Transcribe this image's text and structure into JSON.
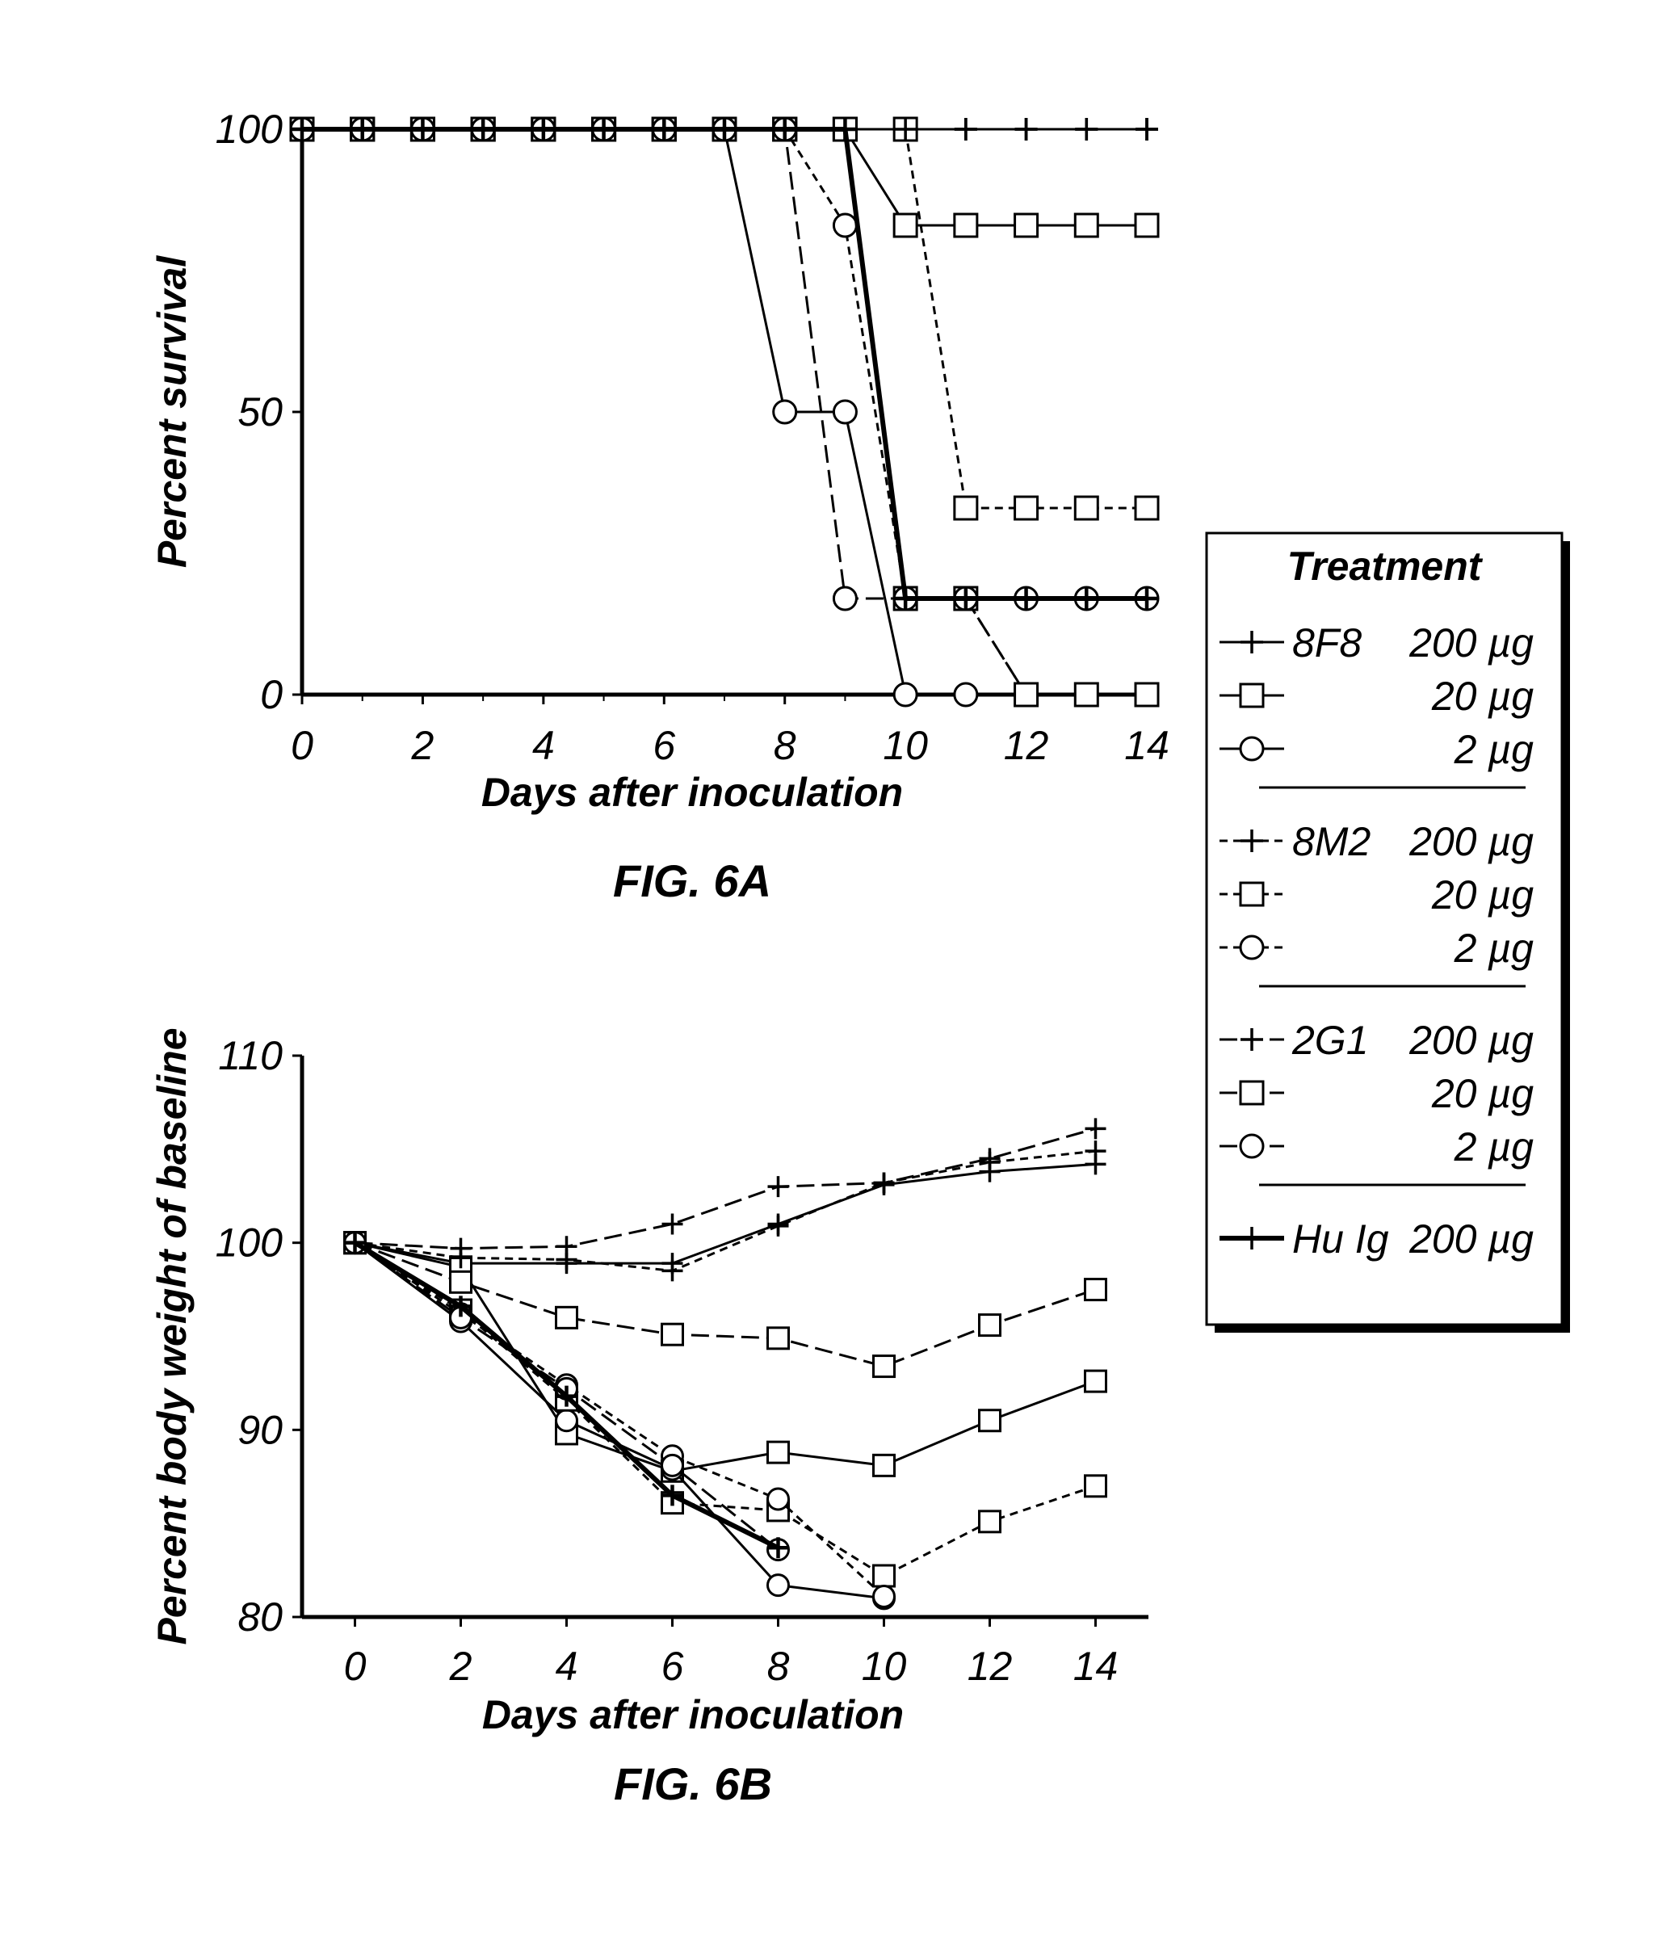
{
  "chart_data": [
    {
      "type": "line",
      "figure_label": "FIG. 6A",
      "title": "",
      "xlabel": "Days after inoculation",
      "ylabel": "Percent survival",
      "xlim": [
        0,
        14
      ],
      "ylim": [
        0,
        100
      ],
      "xticks": [
        "0",
        "2",
        "4",
        "6",
        "8",
        "10",
        "12",
        "14"
      ],
      "yticks": [
        "0",
        "50",
        "100"
      ],
      "series": [
        {
          "name": "8F8 200 µg",
          "marker": "plus",
          "dash": "solid",
          "weight": "normal",
          "x": [
            0,
            1,
            2,
            3,
            4,
            5,
            6,
            7,
            8,
            9,
            10,
            11,
            12,
            13,
            14
          ],
          "y": [
            100,
            100,
            100,
            100,
            100,
            100,
            100,
            100,
            100,
            100,
            100,
            100,
            100,
            100,
            100
          ]
        },
        {
          "name": "8F8 20 µg",
          "marker": "square",
          "dash": "solid",
          "weight": "normal",
          "x": [
            0,
            1,
            2,
            3,
            4,
            5,
            6,
            7,
            8,
            9,
            10,
            11,
            12,
            13,
            14
          ],
          "y": [
            100,
            100,
            100,
            100,
            100,
            100,
            100,
            100,
            100,
            100,
            83,
            83,
            83,
            83,
            83
          ]
        },
        {
          "name": "8F8 2 µg",
          "marker": "circle",
          "dash": "solid",
          "weight": "normal",
          "x": [
            0,
            1,
            2,
            3,
            4,
            5,
            6,
            7,
            8,
            9,
            10,
            11,
            12,
            13,
            14
          ],
          "y": [
            100,
            100,
            100,
            100,
            100,
            100,
            100,
            100,
            50,
            50,
            0,
            0,
            0,
            0,
            0
          ]
        },
        {
          "name": "8M2 200 µg",
          "marker": "plus",
          "dash": "short",
          "weight": "normal",
          "x": [
            0,
            1,
            2,
            3,
            4,
            5,
            6,
            7,
            8,
            9,
            10,
            11,
            12,
            13,
            14
          ],
          "y": [
            100,
            100,
            100,
            100,
            100,
            100,
            100,
            100,
            100,
            100,
            100,
            100,
            100,
            100,
            100
          ]
        },
        {
          "name": "8M2 20 µg",
          "marker": "square",
          "dash": "short",
          "weight": "normal",
          "x": [
            0,
            1,
            2,
            3,
            4,
            5,
            6,
            7,
            8,
            9,
            10,
            11,
            12,
            13,
            14
          ],
          "y": [
            100,
            100,
            100,
            100,
            100,
            100,
            100,
            100,
            100,
            100,
            100,
            33,
            33,
            33,
            33
          ]
        },
        {
          "name": "8M2 2 µg",
          "marker": "circle",
          "dash": "short",
          "weight": "normal",
          "x": [
            0,
            1,
            2,
            3,
            4,
            5,
            6,
            7,
            8,
            9,
            10,
            11,
            12,
            13,
            14
          ],
          "y": [
            100,
            100,
            100,
            100,
            100,
            100,
            100,
            100,
            100,
            83,
            17,
            17,
            0,
            0,
            0
          ]
        },
        {
          "name": "2G1 200 µg",
          "marker": "plus",
          "dash": "long",
          "weight": "normal",
          "x": [
            0,
            1,
            2,
            3,
            4,
            5,
            6,
            7,
            8,
            9,
            10,
            11,
            12,
            13,
            14
          ],
          "y": [
            100,
            100,
            100,
            100,
            100,
            100,
            100,
            100,
            100,
            100,
            100,
            100,
            100,
            100,
            100
          ]
        },
        {
          "name": "2G1 20 µg",
          "marker": "square",
          "dash": "long",
          "weight": "normal",
          "x": [
            0,
            1,
            2,
            3,
            4,
            5,
            6,
            7,
            8,
            9,
            10,
            11,
            12,
            13,
            14
          ],
          "y": [
            100,
            100,
            100,
            100,
            100,
            100,
            100,
            100,
            100,
            100,
            17,
            17,
            0,
            0,
            0
          ]
        },
        {
          "name": "2G1 2 µg",
          "marker": "circle",
          "dash": "long",
          "weight": "normal",
          "x": [
            0,
            1,
            2,
            3,
            4,
            5,
            6,
            7,
            8,
            9,
            10,
            11,
            12,
            13,
            14
          ],
          "y": [
            100,
            100,
            100,
            100,
            100,
            100,
            100,
            100,
            100,
            17,
            17,
            17,
            17,
            17,
            17
          ]
        },
        {
          "name": "Hu Ig 200 µg",
          "marker": "plus",
          "dash": "solid",
          "weight": "bold",
          "x": [
            0,
            1,
            2,
            3,
            4,
            5,
            6,
            7,
            8,
            9,
            10,
            11,
            12,
            13,
            14
          ],
          "y": [
            100,
            100,
            100,
            100,
            100,
            100,
            100,
            100,
            100,
            100,
            17,
            17,
            17,
            17,
            17
          ]
        }
      ]
    },
    {
      "type": "line",
      "figure_label": "FIG. 6B",
      "title": "",
      "xlabel": "Days after inoculation",
      "ylabel": "Percent body weight of baseline",
      "xlim": [
        -1,
        15
      ],
      "ylim": [
        80,
        110
      ],
      "xticks": [
        "0",
        "2",
        "4",
        "6",
        "8",
        "10",
        "12",
        "14"
      ],
      "yticks": [
        "80",
        "90",
        "100",
        "110"
      ],
      "series": [
        {
          "name": "8F8 200 µg",
          "marker": "plus",
          "dash": "solid",
          "weight": "normal",
          "x": [
            0,
            2,
            4,
            6,
            8,
            10,
            12,
            14
          ],
          "y": [
            100,
            98.9,
            98.9,
            98.9,
            101,
            103.1,
            103.8,
            104.2
          ]
        },
        {
          "name": "8F8 20 µg",
          "marker": "square",
          "dash": "solid",
          "weight": "normal",
          "x": [
            0,
            2,
            4,
            6,
            8,
            10,
            12,
            14
          ],
          "y": [
            100,
            98.7,
            89.8,
            87.8,
            88.8,
            88.1,
            90.5,
            92.6
          ]
        },
        {
          "name": "8F8 2 µg",
          "marker": "circle",
          "dash": "solid",
          "weight": "normal",
          "x": [
            0,
            2,
            4,
            6,
            8,
            10
          ],
          "y": [
            100,
            95.8,
            90.5,
            87.9,
            81.7,
            81.0
          ]
        },
        {
          "name": "8M2 200 µg",
          "marker": "plus",
          "dash": "short",
          "weight": "normal",
          "x": [
            0,
            2,
            4,
            6,
            8,
            10,
            12,
            14
          ],
          "y": [
            100,
            99.2,
            99.1,
            98.5,
            100.9,
            103.2,
            104.3,
            104.9
          ]
        },
        {
          "name": "8M2 20 µg",
          "marker": "square",
          "dash": "short",
          "weight": "normal",
          "x": [
            0,
            2,
            4,
            6,
            8,
            10,
            12,
            14
          ],
          "y": [
            100,
            96.4,
            91.6,
            86.1,
            85.7,
            82.2,
            85.1,
            87.0
          ]
        },
        {
          "name": "8M2 2 µg",
          "marker": "circle",
          "dash": "short",
          "weight": "normal",
          "x": [
            0,
            2,
            4,
            6,
            8,
            10
          ],
          "y": [
            100,
            96.2,
            92.4,
            88.6,
            86.3,
            81.1
          ]
        },
        {
          "name": "2G1 200 µg",
          "marker": "plus",
          "dash": "long",
          "weight": "normal",
          "x": [
            0,
            2,
            4,
            6,
            8,
            10,
            12,
            14
          ],
          "y": [
            100,
            99.7,
            99.8,
            101.0,
            103.0,
            103.2,
            104.5,
            106.1
          ]
        },
        {
          "name": "2G1 20 µg",
          "marker": "square",
          "dash": "long",
          "weight": "normal",
          "x": [
            0,
            2,
            4,
            6,
            8,
            10,
            12,
            14
          ],
          "y": [
            100,
            97.9,
            96.0,
            95.1,
            94.9,
            93.4,
            95.6,
            97.5
          ]
        },
        {
          "name": "2G1 2 µg",
          "marker": "circle",
          "dash": "long",
          "weight": "normal",
          "x": [
            0,
            2,
            4,
            6,
            8
          ],
          "y": [
            100,
            96.0,
            92.2,
            88.1,
            83.6
          ]
        },
        {
          "name": "Hu Ig 200 µg",
          "marker": "plus",
          "dash": "solid",
          "weight": "bold",
          "x": [
            0,
            2,
            4,
            6,
            8
          ],
          "y": [
            100,
            96.6,
            91.8,
            86.5,
            83.7
          ]
        }
      ]
    }
  ],
  "legend": {
    "title": "Treatment",
    "groups": [
      {
        "items": [
          {
            "name": "8F8",
            "dose": "200 µg",
            "marker": "plus",
            "dash": "solid",
            "weight": "normal"
          },
          {
            "name": "",
            "dose": "20 µg",
            "marker": "square",
            "dash": "solid",
            "weight": "normal"
          },
          {
            "name": "",
            "dose": "2 µg",
            "marker": "circle",
            "dash": "solid",
            "weight": "normal"
          }
        ]
      },
      {
        "items": [
          {
            "name": "8M2",
            "dose": "200 µg",
            "marker": "plus",
            "dash": "short",
            "weight": "normal"
          },
          {
            "name": "",
            "dose": "20 µg",
            "marker": "square",
            "dash": "short",
            "weight": "normal"
          },
          {
            "name": "",
            "dose": "2 µg",
            "marker": "circle",
            "dash": "short",
            "weight": "normal"
          }
        ]
      },
      {
        "items": [
          {
            "name": "2G1",
            "dose": "200 µg",
            "marker": "plus",
            "dash": "long",
            "weight": "normal"
          },
          {
            "name": "",
            "dose": "20 µg",
            "marker": "square",
            "dash": "long",
            "weight": "normal"
          },
          {
            "name": "",
            "dose": "2 µg",
            "marker": "circle",
            "dash": "long",
            "weight": "normal"
          }
        ]
      },
      {
        "items": [
          {
            "name": "Hu Ig",
            "dose": "200 µg",
            "marker": "plus",
            "dash": "solid",
            "weight": "bold"
          }
        ]
      }
    ]
  },
  "colors": {
    "ink": "#000000",
    "background": "#ffffff"
  }
}
